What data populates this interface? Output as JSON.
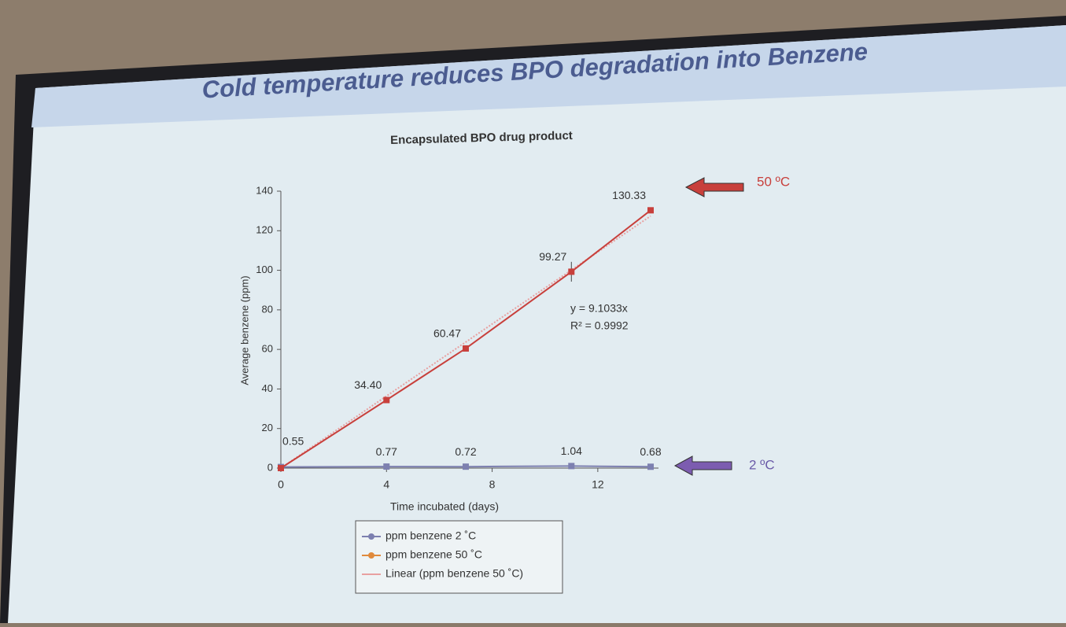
{
  "slide_title": "Cold temperature reduces BPO degradation into Benzene",
  "chart_data": {
    "type": "line",
    "title": "Encapsulated BPO drug product",
    "x_label": "Time incubated (days)",
    "y_label": "Average benzene (ppm)",
    "x": [
      0,
      4,
      7,
      11,
      14
    ],
    "series": [
      {
        "name": "ppm benzene 2 ˚C",
        "color": "#7d80b0",
        "values": [
          0.55,
          0.77,
          0.72,
          1.04,
          0.68
        ],
        "value_labels": [
          "0.55",
          "0.77",
          "0.72",
          "1.04",
          "0.68"
        ]
      },
      {
        "name": "ppm benzene 50 ˚C",
        "color": "#c8403c",
        "values": [
          0,
          34.4,
          60.47,
          99.27,
          130.33
        ],
        "value_labels": [
          null,
          "34.40",
          "60.47",
          "99.27",
          "130.33"
        ],
        "errors": [
          null,
          null,
          null,
          5,
          null
        ]
      }
    ],
    "trendline": {
      "name": "Linear (ppm benzene 50 ˚C)",
      "color": "#e8a0a0",
      "slope": 9.1033,
      "equation": "y = 9.1033x",
      "r_squared": "R² = 0.9992"
    },
    "annotations": [
      {
        "text": "50 ºC",
        "color": "#c8403c"
      },
      {
        "text": "2 ºC",
        "color": "#6a5aa8"
      }
    ],
    "xlim": [
      0,
      14
    ],
    "xticks": [
      0,
      4,
      8,
      12
    ],
    "ylim": [
      0,
      140
    ],
    "yticks": [
      0,
      20,
      40,
      60,
      80,
      100,
      120,
      140
    ]
  }
}
